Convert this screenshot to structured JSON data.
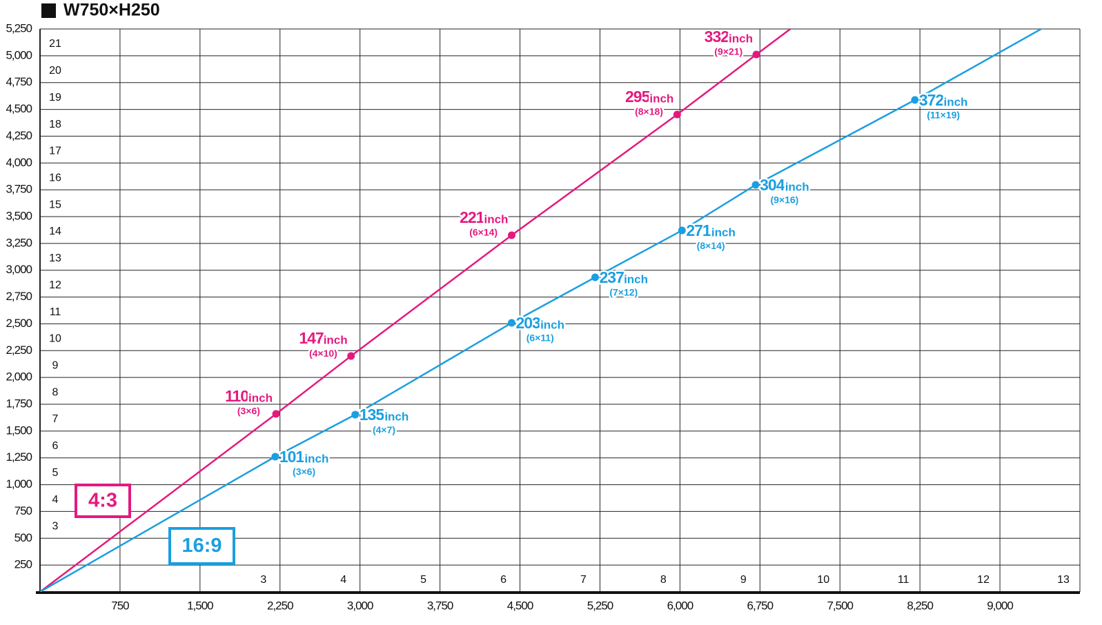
{
  "chart_data": {
    "type": "scatter-line",
    "title": "W750×H250",
    "xlim": [
      0,
      9750
    ],
    "ylim": [
      0,
      5250
    ],
    "xticks": [
      {
        "value": 750,
        "label": "750"
      },
      {
        "value": 1500,
        "label": "1,500"
      },
      {
        "value": 2250,
        "label": "2,250"
      },
      {
        "value": 3000,
        "label": "3,000"
      },
      {
        "value": 3750,
        "label": "3,750"
      },
      {
        "value": 4500,
        "label": "4,500"
      },
      {
        "value": 5250,
        "label": "5,250"
      },
      {
        "value": 6000,
        "label": "6,000"
      },
      {
        "value": 6750,
        "label": "6,750"
      },
      {
        "value": 7500,
        "label": "7,500"
      },
      {
        "value": 8250,
        "label": "8,250"
      },
      {
        "value": 9000,
        "label": "9,000"
      }
    ],
    "yticks": [
      250,
      500,
      750,
      {
        "value": 1000,
        "label": "1,000"
      },
      {
        "value": 1250,
        "label": "1,250"
      },
      {
        "value": 1500,
        "label": "1,500"
      },
      {
        "value": 1750,
        "label": "1,750"
      },
      {
        "value": 2000,
        "label": "2,000"
      },
      {
        "value": 2250,
        "label": "2,250"
      },
      {
        "value": 2500,
        "label": "2,500"
      },
      {
        "value": 2750,
        "label": "2,750"
      },
      {
        "value": 3000,
        "label": "3,000"
      },
      {
        "value": 3250,
        "label": "3,250"
      },
      {
        "value": 3500,
        "label": "3,500"
      },
      {
        "value": 3750,
        "label": "3,750"
      },
      {
        "value": 4000,
        "label": "4,000"
      },
      {
        "value": 4250,
        "label": "4,250"
      },
      {
        "value": 4500,
        "label": "4,500"
      },
      {
        "value": 4750,
        "label": "4,750"
      },
      {
        "value": 5000,
        "label": "5,000"
      },
      {
        "value": 5250,
        "label": "5,250"
      }
    ],
    "x_module_labels": [
      3,
      4,
      5,
      6,
      7,
      8,
      9,
      10,
      11,
      12,
      13
    ],
    "y_module_labels": [
      3,
      4,
      5,
      6,
      7,
      8,
      9,
      10,
      11,
      12,
      13,
      14,
      15,
      16,
      17,
      18,
      19,
      20,
      21
    ],
    "grid": true,
    "unit": "inch",
    "series": [
      {
        "name": "4:3",
        "color": "#e4197f",
        "x": [
          2213,
          2916,
          4422,
          5974,
          6716
        ],
        "values": [
          1660,
          2200,
          3326,
          4452,
          5012
        ],
        "point_labels": [
          "110",
          "147",
          "221",
          "295",
          "332"
        ],
        "sizes": [
          "(3×6)",
          "(4×10)",
          "(6×14)",
          "(8×18)",
          "(9×21)"
        ]
      },
      {
        "name": "16:9",
        "color": "#1a9fe0",
        "x": [
          2205,
          2955,
          4422,
          5205,
          6019,
          6710,
          8203
        ],
        "values": [
          1261,
          1653,
          2509,
          2934,
          3371,
          3796,
          4588
        ],
        "point_labels": [
          "101",
          "135",
          "203",
          "237",
          "271",
          "304",
          "372"
        ],
        "sizes": [
          "(3×6)",
          "(4×7)",
          "(6×11)",
          "(7×12)",
          "(8×14)",
          "(9×16)",
          "(11×19)"
        ]
      }
    ]
  }
}
